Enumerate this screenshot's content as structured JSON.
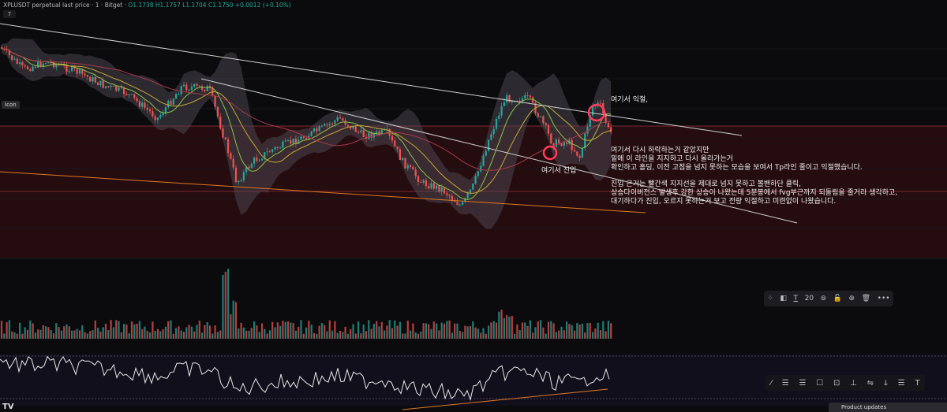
{
  "header": {
    "symbol_line": "XPLUSDT perpetual last price · 1 · Bitget ·",
    "ohlc": "O1.1738 H1.1757 L1.1704 C1.1750 +0.0012 (+0.10%)"
  },
  "collapse": "7",
  "side_label": "Icon",
  "annotations": {
    "take_profit": "여기서 익절,",
    "entry": "여기서 진입",
    "paragraph1": "여기서 다시 하락하는거 같았지만\n밑에 이 라인을 지지하고 다시 올라가는거\n확인하고 홀딩, 이전 고점을 넘지 못하는 모습을 보여서 Tp라인 줄이고 익절했습니다.",
    "paragraph2": "진입 근거는 빨간색 지지선을 제대로 넘지 못하고 볼밴하단 클릭,\n상승다이버전스 발생후 강한 상승이 나왔는데 5분봉에서 fvg부근까지 되돌림을 줄거라 생각하고,\n대기하다가 진입, 오르지 못하는거 보고 전량 익절하고 미련없이 나왔습니다."
  },
  "toolbar": {
    "items": [
      "⁘",
      "◧",
      "T",
      "20",
      "⊚",
      "🔓",
      "⊕",
      "🗑",
      "•••"
    ]
  },
  "drawbar": {
    "items": [
      "⁄",
      "☰",
      "☰",
      "☐",
      "⊡",
      "⊥",
      "⇋",
      "ↆ",
      "☰",
      "T"
    ]
  },
  "footer": {
    "logo": "TV",
    "updates": "Product updates"
  },
  "colors": {
    "up": "#26a69a",
    "down": "#ef5350",
    "circle": "#ff3b5c",
    "band": "#5a5560"
  }
}
